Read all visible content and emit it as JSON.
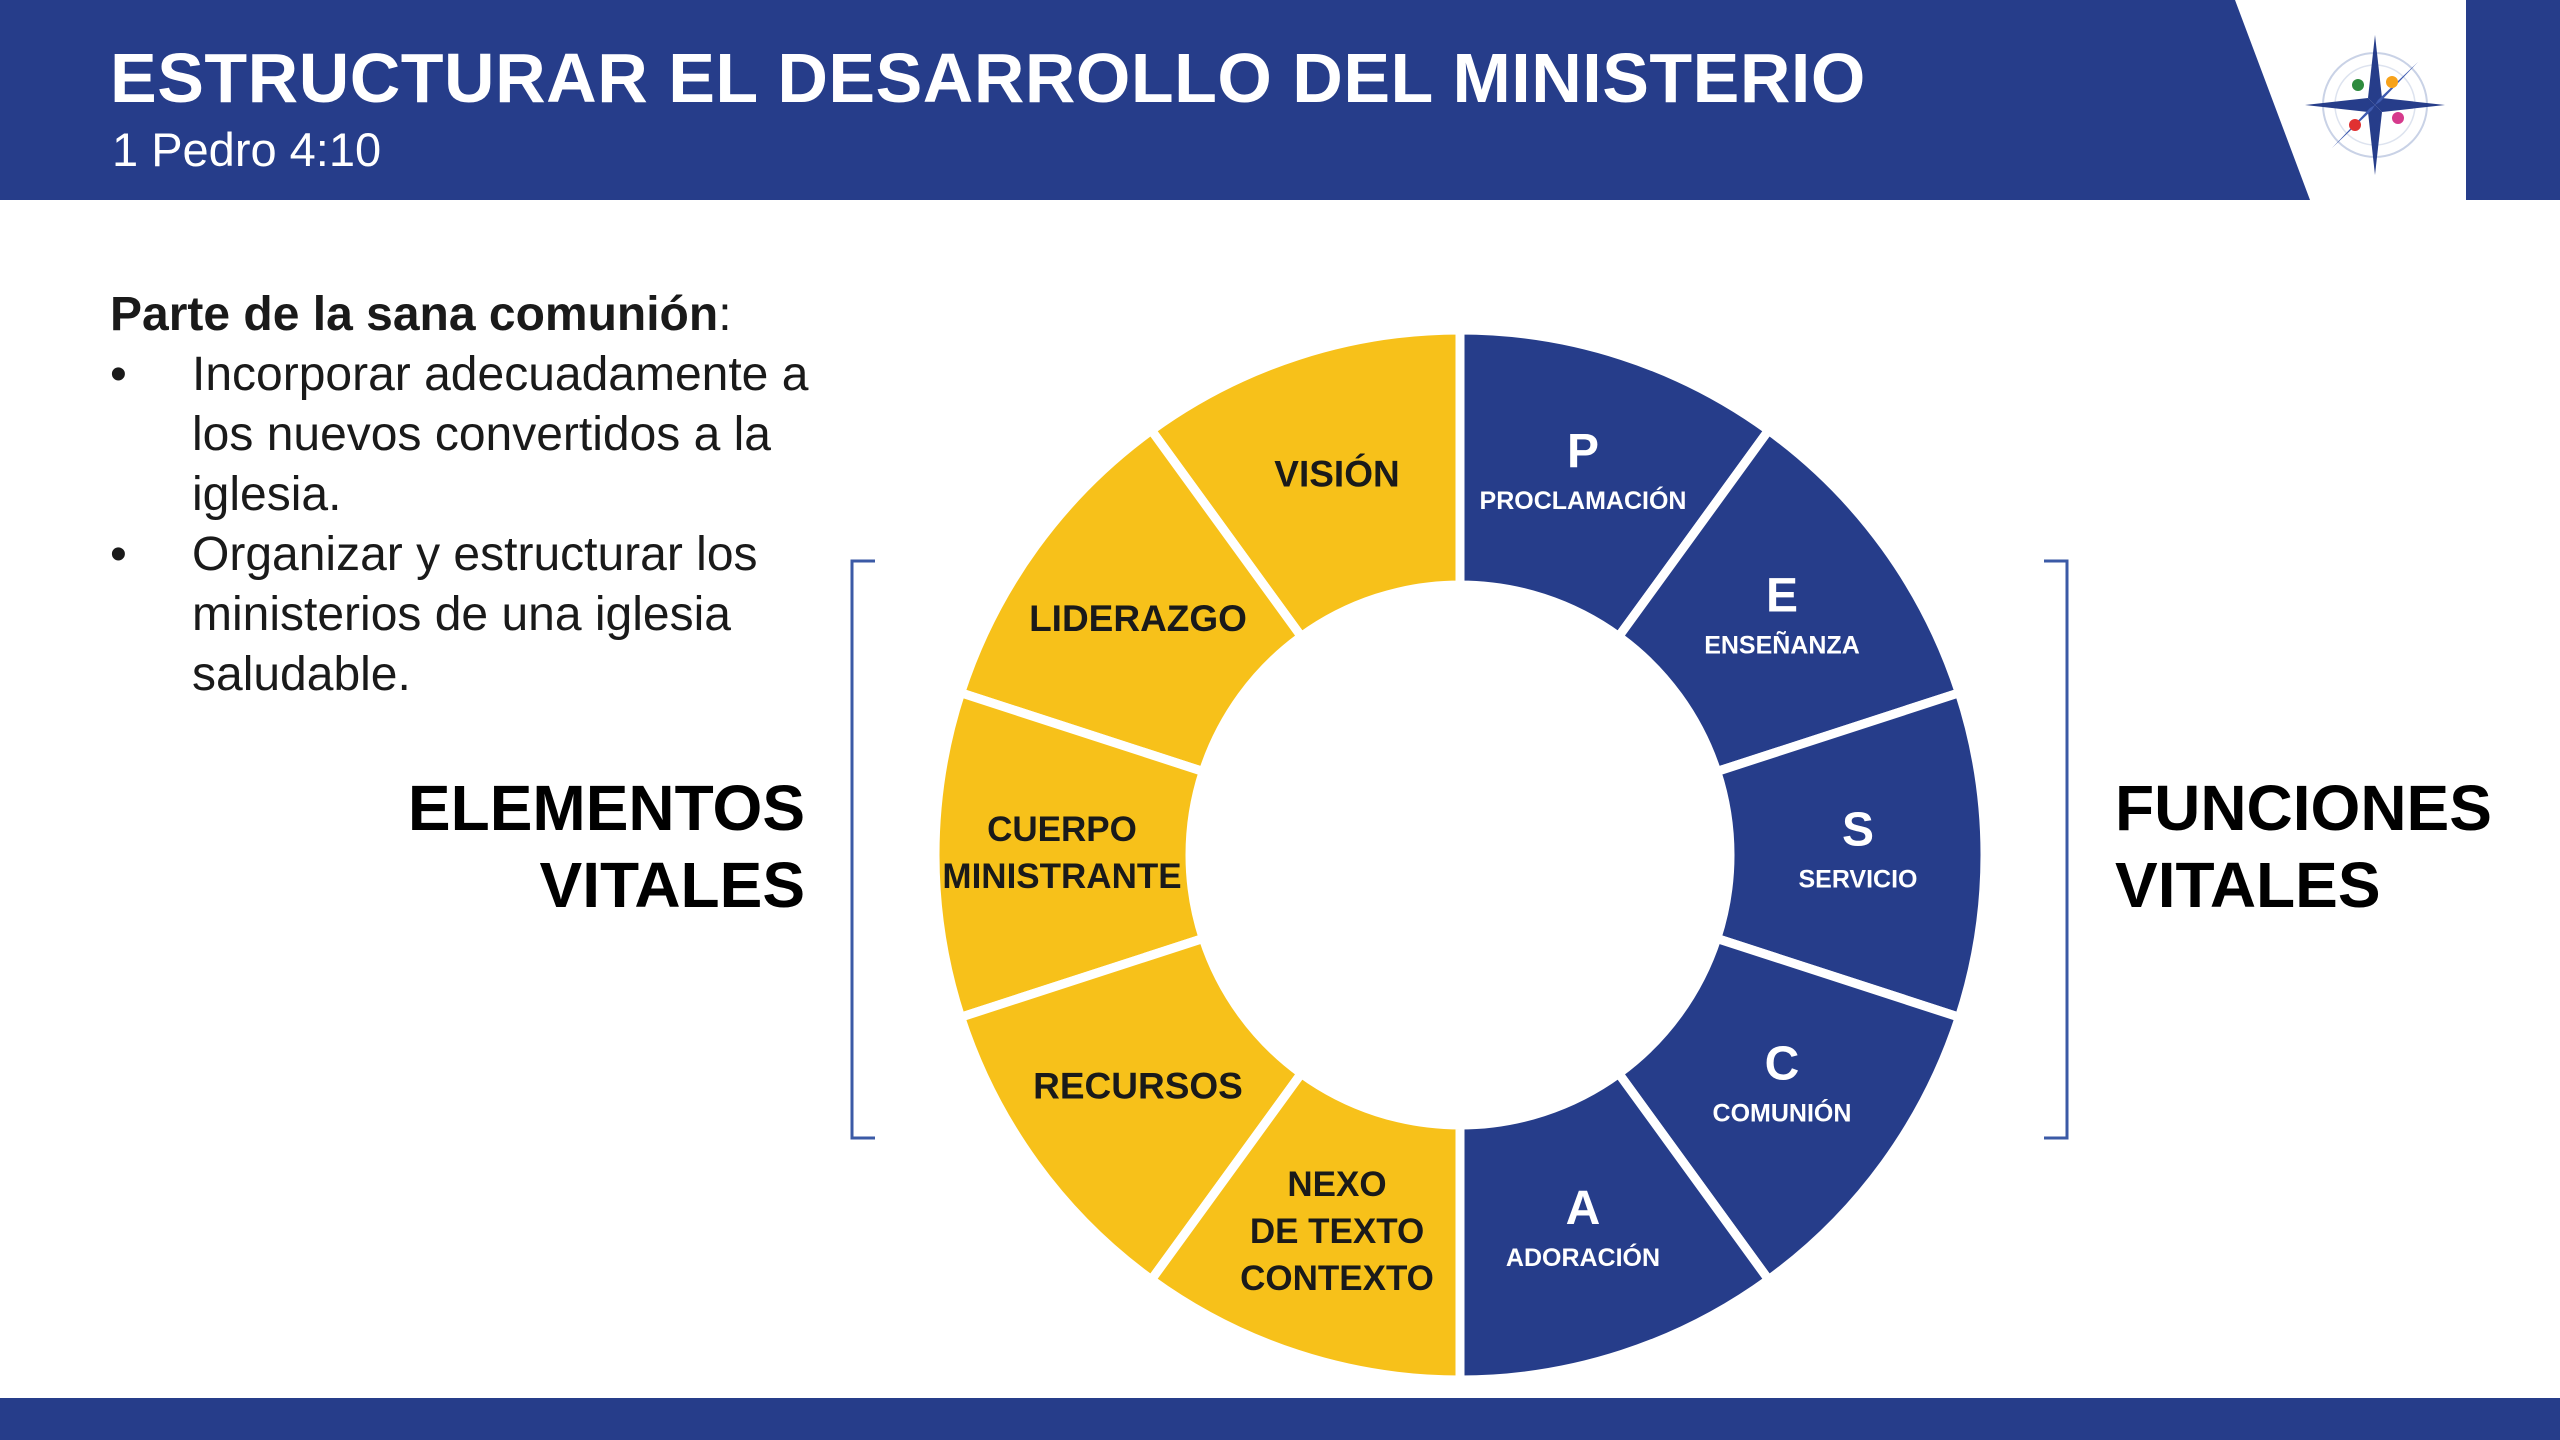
{
  "header": {
    "title": "ESTRUCTURAR EL DESARROLLO DEL MINISTERIO",
    "subtitle": "1 Pedro 4:10"
  },
  "intro": {
    "heading": "Parte de la sana comunión",
    "heading_suffix": ":",
    "bullet_symbol": "•",
    "bullets": [
      "Incorporar adecuadamente a los nuevos convertidos a la iglesia.",
      "Organizar y estructurar los ministerios de una iglesia saludable."
    ]
  },
  "side_labels": {
    "left": [
      "ELEMENTOS",
      "VITALES"
    ],
    "right": [
      "FUNCIONES",
      "VITALES"
    ]
  },
  "wheel": {
    "colors": {
      "elements": "#f7c11a",
      "functions": "#263d8a",
      "element_text": "#1a1a1a",
      "function_text": "#ffffff"
    },
    "elements": [
      {
        "lines": [
          "VISIÓN"
        ]
      },
      {
        "lines": [
          "LIDERAZGO"
        ]
      },
      {
        "lines": [
          "CUERPO",
          "MINISTRANTE"
        ]
      },
      {
        "lines": [
          "RECURSOS"
        ]
      },
      {
        "lines": [
          "NEXO",
          "DE TEXTO",
          "CONTEXTO"
        ]
      }
    ],
    "functions": [
      {
        "letter": "P",
        "label": "PROCLAMACIÓN"
      },
      {
        "letter": "E",
        "label": "ENSEÑANZA"
      },
      {
        "letter": "S",
        "label": "SERVICIO"
      },
      {
        "letter": "C",
        "label": "COMUNIÓN"
      },
      {
        "letter": "A",
        "label": "ADORACIÓN"
      }
    ]
  },
  "colors": {
    "brand": "#263d8a",
    "accent": "#f7c11a"
  }
}
